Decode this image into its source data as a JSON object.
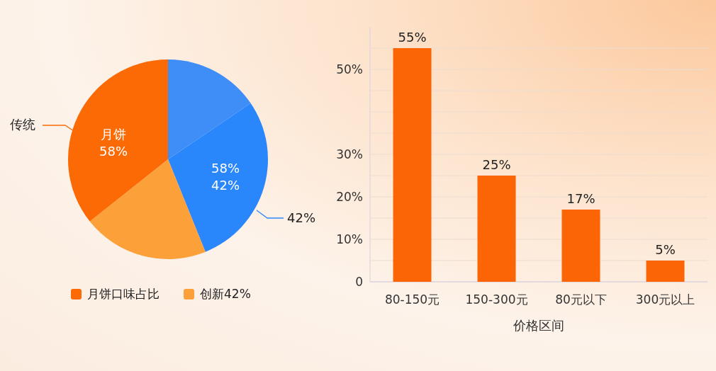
{
  "chart_data": [
    {
      "type": "pie",
      "categories": [
        null,
        null,
        "创新42%",
        "月饼口味占比"
      ],
      "values": [
        15.5,
        28.4,
        20.4,
        35.7
      ],
      "colors": [
        "#3f8ef8",
        "#2a87fb",
        "#fca13a",
        "#fb6a05"
      ],
      "legend": "bottom",
      "annotations": [
        "传统",
        "月饼\n58%",
        "58%\n42%",
        "42%"
      ]
    },
    {
      "type": "bar",
      "categories": [
        "80-150元",
        "150-300元",
        "80元以下",
        "300元以上"
      ],
      "values": [
        55,
        25,
        17,
        5
      ],
      "value_labels": [
        "55%",
        "25%",
        "17%",
        "5%"
      ],
      "color": "#fb6505",
      "xlabel": "价格区间",
      "ylim": [
        0,
        60
      ],
      "yticks": [
        0,
        {
          "value": 5,
          "label": null
        },
        {
          "value": 10,
          "label": "10%"
        },
        {
          "value": 15,
          "label": null
        },
        {
          "value": 20,
          "label": "20%"
        },
        {
          "value": 25,
          "label": null
        },
        {
          "value": 30,
          "label": "30%"
        },
        {
          "value": 35,
          "label": null
        },
        {
          "value": 40,
          "label": null
        },
        {
          "value": 45,
          "label": null
        },
        {
          "value": 50,
          "label": "50%"
        },
        {
          "value": 55,
          "label": null
        }
      ],
      "grid": "y"
    }
  ]
}
